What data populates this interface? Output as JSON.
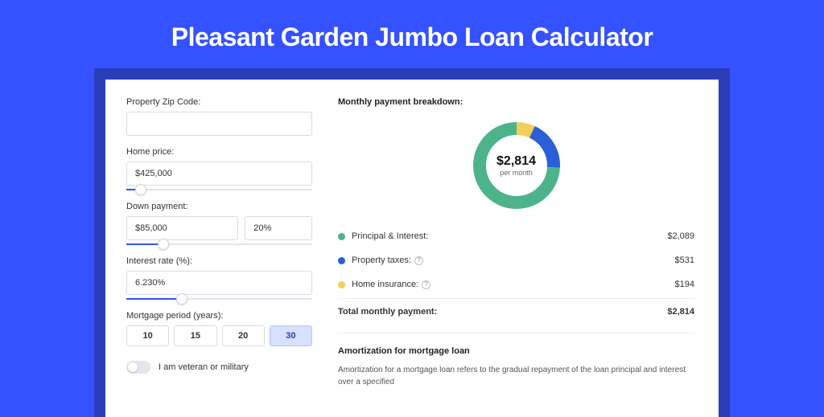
{
  "page": {
    "title": "Pleasant Garden Jumbo Loan Calculator",
    "bg_color": "#3452ff",
    "panel_accent": "#2a3db8"
  },
  "form": {
    "zip": {
      "label": "Property Zip Code:",
      "value": ""
    },
    "home_price": {
      "label": "Home price:",
      "value": "$425,000",
      "slider_pct": 8
    },
    "down_payment": {
      "label": "Down payment:",
      "value": "$85,000",
      "percent": "20%",
      "slider_pct": 20
    },
    "interest_rate": {
      "label": "Interest rate (%):",
      "value": "6.230%",
      "slider_pct": 30
    },
    "mortgage_period": {
      "label": "Mortgage period (years):",
      "options": [
        "10",
        "15",
        "20",
        "30"
      ],
      "selected": "30"
    },
    "veteran_toggle": {
      "label": "I am veteran or military",
      "value": false
    }
  },
  "breakdown": {
    "title": "Monthly payment breakdown:",
    "center_amount": "$2,814",
    "center_sub": "per month",
    "items": [
      {
        "key": "principal_interest",
        "label": "Principal & Interest:",
        "value": "$2,089",
        "color": "#4db38a",
        "pct": 74.2,
        "has_info": false
      },
      {
        "key": "property_taxes",
        "label": "Property taxes:",
        "value": "$531",
        "color": "#2a5fd8",
        "pct": 18.9,
        "has_info": true
      },
      {
        "key": "home_insurance",
        "label": "Home insurance:",
        "value": "$194",
        "color": "#f2ce5a",
        "pct": 6.9,
        "has_info": true
      }
    ],
    "total_label": "Total monthly payment:",
    "total_value": "$2,814",
    "donut": {
      "stroke_width": 16,
      "radius": 46,
      "bg": "#ffffff"
    }
  },
  "amortization": {
    "title": "Amortization for mortgage loan",
    "text": "Amortization for a mortgage loan refers to the gradual repayment of the loan principal and interest over a specified"
  }
}
